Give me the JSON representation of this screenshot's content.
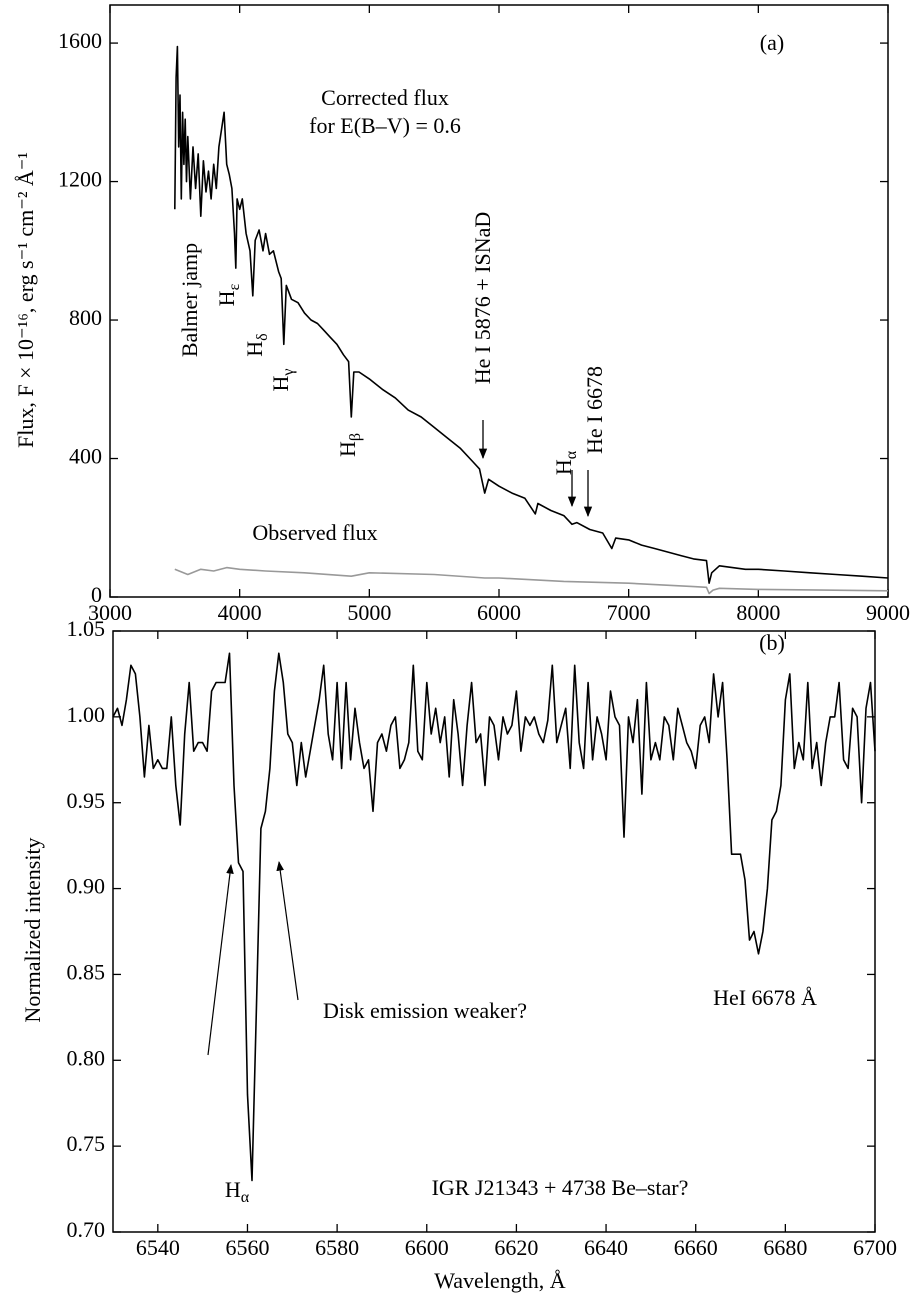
{
  "chart_data": [
    {
      "type": "line",
      "xlim": [
        3000,
        9000
      ],
      "ylim": [
        0,
        1710
      ],
      "xticks": [
        3000,
        4000,
        5000,
        6000,
        7000,
        8000,
        9000
      ],
      "yticks": [
        0,
        400,
        800,
        1200,
        1600
      ],
      "y_label": "Flux, F × 10⁻¹⁶, erg s⁻¹ cm⁻² Å⁻¹",
      "annotations": [
        "(a)",
        "Corrected flux",
        "for E(B–V) = 0.6",
        "Balmer jamp",
        "Hε",
        "Hδ",
        "Hγ",
        "Hβ",
        "He I 5876 + ISNaD",
        "Hα",
        "He I 6678",
        "Observed flux"
      ],
      "series": [
        {
          "color": "#000000",
          "x": [
            3500,
            3510,
            3520,
            3530,
            3540,
            3550,
            3560,
            3570,
            3580,
            3590,
            3600,
            3620,
            3640,
            3660,
            3680,
            3700,
            3720,
            3740,
            3760,
            3780,
            3800,
            3820,
            3840,
            3860,
            3880,
            3900,
            3920,
            3940,
            3960,
            3970,
            3980,
            4000,
            4020,
            4050,
            4080,
            4101,
            4120,
            4150,
            4180,
            4200,
            4230,
            4260,
            4300,
            4320,
            4340,
            4360,
            4380,
            4400,
            4450,
            4500,
            4550,
            4600,
            4650,
            4700,
            4750,
            4800,
            4840,
            4861,
            4880,
            4920,
            5000,
            5100,
            5200,
            5300,
            5400,
            5500,
            5600,
            5700,
            5800,
            5850,
            5890,
            5920,
            6000,
            6100,
            6200,
            6280,
            6300,
            6400,
            6500,
            6563,
            6600,
            6700,
            6800,
            6870,
            6900,
            7000,
            7100,
            7200,
            7300,
            7400,
            7500,
            7600,
            7620,
            7640,
            7700,
            7800,
            7900,
            8000,
            8200,
            8400,
            8600,
            8800,
            9000
          ],
          "values": [
            1120,
            1500,
            1590,
            1300,
            1450,
            1150,
            1400,
            1250,
            1380,
            1200,
            1330,
            1150,
            1300,
            1180,
            1280,
            1100,
            1260,
            1170,
            1230,
            1150,
            1250,
            1180,
            1300,
            1350,
            1400,
            1250,
            1220,
            1180,
            1050,
            950,
            1150,
            1120,
            1150,
            1050,
            1000,
            870,
            1030,
            1060,
            1000,
            1050,
            990,
            1000,
            940,
            920,
            730,
            900,
            880,
            860,
            850,
            820,
            800,
            790,
            770,
            750,
            730,
            700,
            680,
            520,
            650,
            650,
            630,
            600,
            575,
            540,
            520,
            490,
            460,
            430,
            390,
            370,
            300,
            340,
            320,
            300,
            285,
            240,
            270,
            250,
            235,
            210,
            215,
            195,
            185,
            140,
            170,
            165,
            150,
            140,
            130,
            120,
            110,
            105,
            40,
            70,
            90,
            85,
            80,
            80,
            75,
            70,
            65,
            60,
            55
          ]
        },
        {
          "color": "#999999",
          "x": [
            3500,
            3600,
            3700,
            3800,
            3900,
            4000,
            4200,
            4500,
            4861,
            5000,
            5500,
            5890,
            6000,
            6500,
            7000,
            7500,
            7600,
            7620,
            7650,
            7700,
            8000,
            8500,
            9000
          ],
          "values": [
            80,
            65,
            80,
            75,
            85,
            80,
            75,
            70,
            60,
            70,
            65,
            55,
            55,
            45,
            40,
            30,
            28,
            10,
            20,
            25,
            22,
            20,
            18
          ]
        }
      ]
    },
    {
      "type": "line",
      "xlim": [
        6530,
        6700
      ],
      "ylim": [
        0.7,
        1.05
      ],
      "xticks": [
        6540,
        6560,
        6580,
        6600,
        6620,
        6640,
        6660,
        6680,
        6700
      ],
      "yticks": [
        {
          "value": 0.7,
          "label": "0.70"
        },
        0.75,
        {
          "value": 0.8,
          "label": "0.80"
        },
        0.85,
        {
          "value": 0.9,
          "label": "0.90"
        },
        0.95,
        {
          "value": 1,
          "label": "1.00"
        },
        1.05
      ],
      "x_label": "Wavelength, Å",
      "y_label": "Normalized intensity",
      "annotations": [
        "(b)",
        "Disk emission weaker?",
        "HeI 6678 Å",
        "Hα",
        "IGR J21343 + 4738 Be–star?"
      ],
      "series": [
        {
          "color": "#000000",
          "x": [
            6530,
            6531,
            6532,
            6533,
            6534,
            6535,
            6536,
            6537,
            6538,
            6539,
            6540,
            6541,
            6542,
            6543,
            6544,
            6545,
            6546,
            6547,
            6548,
            6549,
            6550,
            6551,
            6552,
            6553,
            6554,
            6555,
            6556,
            6557,
            6558,
            6559,
            6560,
            6561,
            6562,
            6563,
            6564,
            6565,
            6566,
            6567,
            6568,
            6569,
            6570,
            6571,
            6572,
            6573,
            6574,
            6575,
            6576,
            6577,
            6578,
            6579,
            6580,
            6581,
            6582,
            6583,
            6584,
            6585,
            6586,
            6587,
            6588,
            6589,
            6590,
            6591,
            6592,
            6593,
            6594,
            6595,
            6596,
            6597,
            6598,
            6599,
            6600,
            6601,
            6602,
            6603,
            6604,
            6605,
            6606,
            6607,
            6608,
            6609,
            6610,
            6611,
            6612,
            6613,
            6614,
            6615,
            6616,
            6617,
            6618,
            6619,
            6620,
            6621,
            6622,
            6623,
            6624,
            6625,
            6626,
            6627,
            6628,
            6629,
            6630,
            6631,
            6632,
            6633,
            6634,
            6635,
            6636,
            6637,
            6638,
            6639,
            6640,
            6641,
            6642,
            6643,
            6644,
            6645,
            6646,
            6647,
            6648,
            6649,
            6650,
            6651,
            6652,
            6653,
            6654,
            6655,
            6656,
            6657,
            6658,
            6659,
            6660,
            6661,
            6662,
            6663,
            6664,
            6665,
            6666,
            6667,
            6668,
            6669,
            6670,
            6671,
            6672,
            6673,
            6674,
            6675,
            6676,
            6677,
            6678,
            6679,
            6680,
            6681,
            6682,
            6683,
            6684,
            6685,
            6686,
            6687,
            6688,
            6689,
            6690,
            6691,
            6692,
            6693,
            6694,
            6695,
            6696,
            6697,
            6698,
            6699,
            6700
          ],
          "values": [
            1.0,
            1.005,
            0.995,
            1.01,
            1.03,
            1.025,
            1.0,
            0.965,
            0.995,
            0.97,
            0.975,
            0.97,
            0.97,
            1.0,
            0.96,
            0.937,
            0.99,
            1.02,
            0.98,
            0.985,
            0.985,
            0.98,
            1.015,
            1.02,
            1.02,
            1.02,
            1.037,
            0.96,
            0.915,
            0.91,
            0.78,
            0.73,
            0.83,
            0.935,
            0.945,
            0.97,
            1.015,
            1.037,
            1.02,
            0.99,
            0.985,
            0.96,
            0.985,
            0.965,
            0.98,
            0.995,
            1.01,
            1.03,
            0.99,
            0.975,
            1.02,
            0.97,
            1.02,
            0.975,
            1.005,
            0.985,
            0.97,
            0.975,
            0.945,
            0.985,
            0.99,
            0.98,
            0.995,
            1.0,
            0.97,
            0.975,
            0.985,
            1.03,
            0.98,
            0.975,
            1.02,
            0.99,
            1.005,
            0.985,
            1.0,
            0.965,
            1.01,
            0.99,
            0.96,
            0.995,
            1.02,
            0.985,
            0.99,
            0.96,
            1.0,
            0.995,
            0.975,
            1.0,
            0.99,
            0.995,
            1.015,
            0.98,
            1.0,
            0.995,
            1.0,
            0.99,
            0.985,
            0.998,
            1.03,
            0.985,
            0.995,
            1.005,
            0.97,
            1.03,
            0.985,
            0.97,
            1.02,
            0.975,
            1.0,
            0.99,
            0.975,
            1.015,
            1.0,
            0.995,
            0.93,
            1.0,
            0.985,
            1.01,
            0.955,
            1.02,
            0.975,
            0.985,
            0.975,
            1.0,
            0.995,
            0.975,
            1.005,
            0.995,
            0.985,
            0.98,
            0.97,
            0.995,
            1.0,
            0.985,
            1.025,
            1.0,
            1.02,
            0.975,
            0.92,
            0.92,
            0.92,
            0.905,
            0.87,
            0.875,
            0.862,
            0.875,
            0.9,
            0.94,
            0.945,
            0.96,
            1.01,
            1.025,
            0.97,
            0.985,
            0.975,
            1.02,
            0.97,
            0.985,
            0.96,
            0.985,
            1.0,
            1.0,
            1.02,
            0.975,
            0.97,
            1.005,
            1.0,
            0.95,
            1.005,
            1.02,
            0.98
          ]
        }
      ]
    }
  ]
}
